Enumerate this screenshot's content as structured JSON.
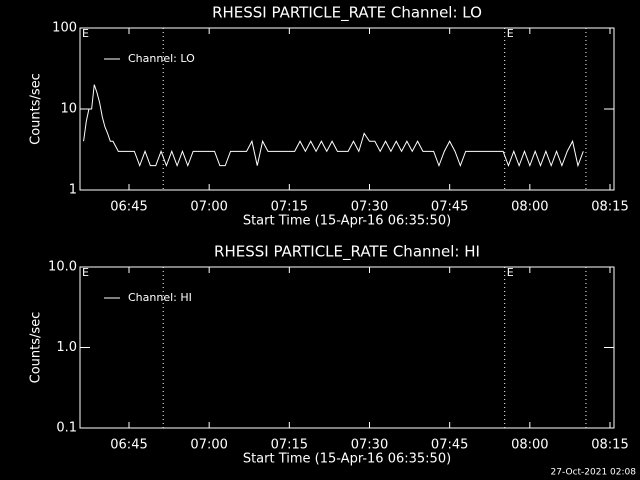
{
  "chart_data": [
    {
      "type": "line",
      "title": "RHESSI PARTICLE_RATE Channel: LO",
      "xlabel": "Start Time (15-Apr-16 06:35:50)",
      "ylabel": "Counts/sec",
      "log_y": true,
      "legend": "upper left",
      "xlim": [
        395.83,
        495.75
      ],
      "xticks": [
        {
          "value": 405,
          "label": "06:45"
        },
        {
          "value": 420,
          "label": "07:00"
        },
        {
          "value": 435,
          "label": "07:15"
        },
        {
          "value": 450,
          "label": "07:30"
        },
        {
          "value": 465,
          "label": "07:45"
        },
        {
          "value": 480,
          "label": "08:00"
        },
        {
          "value": 495,
          "label": "08:15"
        }
      ],
      "ylim": [
        1,
        100
      ],
      "yticks": [
        1,
        10,
        100
      ],
      "vlines": [
        411.4,
        475.3,
        490.5
      ],
      "annotations": [
        {
          "text": "E",
          "x": 395.83
        },
        {
          "text": "E",
          "x": 475.3
        }
      ],
      "x": [
        396.5,
        397,
        397.5,
        398,
        398.5,
        399,
        399.5,
        400,
        400.5,
        401,
        401.5,
        402,
        403,
        404,
        405,
        406,
        407,
        408,
        409,
        410,
        411,
        412,
        413,
        414,
        415,
        416,
        417,
        418,
        419,
        420,
        421,
        422,
        423,
        424,
        425,
        426,
        427,
        428,
        429,
        430,
        431,
        432,
        433,
        434,
        435,
        436,
        437,
        438,
        439,
        440,
        441,
        442,
        443,
        444,
        445,
        446,
        447,
        448,
        449,
        450,
        451,
        452,
        453,
        454,
        455,
        456,
        457,
        458,
        459,
        460,
        461,
        462,
        463,
        464,
        465,
        466,
        467,
        468,
        469,
        470,
        471,
        472,
        473,
        474,
        475,
        476,
        477,
        478,
        479,
        480,
        481,
        482,
        483,
        484,
        485,
        486,
        487,
        488,
        489,
        490
      ],
      "series": [
        {
          "name": "Channel: LO",
          "color": "#ffffff",
          "values": [
            4,
            7,
            10,
            10,
            20,
            16,
            12,
            8,
            6,
            5,
            4,
            4,
            3,
            3,
            3,
            3,
            2,
            3,
            2,
            2,
            3,
            2,
            3,
            2,
            3,
            2,
            3,
            3,
            3,
            3,
            3,
            2,
            2,
            3,
            3,
            3,
            3,
            4,
            2,
            4,
            3,
            3,
            3,
            3,
            3,
            3,
            4,
            3,
            4,
            3,
            4,
            3,
            4,
            3,
            3,
            3,
            4,
            3,
            5,
            4,
            4,
            3,
            4,
            3,
            4,
            3,
            4,
            3,
            4,
            3,
            3,
            3,
            2,
            3,
            4,
            3,
            2,
            3,
            3,
            3,
            3,
            3,
            3,
            3,
            3,
            2,
            3,
            2,
            3,
            2,
            3,
            2,
            3,
            2,
            3,
            2,
            3,
            4,
            2,
            3
          ]
        }
      ]
    },
    {
      "type": "line",
      "title": "RHESSI PARTICLE_RATE Channel: HI",
      "xlabel": "Start Time (15-Apr-16 06:35:50)",
      "ylabel": "Counts/sec",
      "log_y": true,
      "legend": "upper left",
      "xlim": [
        395.83,
        495.75
      ],
      "xticks": [
        {
          "value": 405,
          "label": "06:45"
        },
        {
          "value": 420,
          "label": "07:00"
        },
        {
          "value": 435,
          "label": "07:15"
        },
        {
          "value": 450,
          "label": "07:30"
        },
        {
          "value": 465,
          "label": "07:45"
        },
        {
          "value": 480,
          "label": "08:00"
        },
        {
          "value": 495,
          "label": "08:15"
        }
      ],
      "ylim": [
        0.1,
        10
      ],
      "yticks": [
        0.1,
        {
          "value": 1,
          "label": "1.0"
        },
        {
          "value": 10,
          "label": "10.0"
        }
      ],
      "vlines": [
        411.4,
        475.3,
        490.5
      ],
      "annotations": [
        {
          "text": "E",
          "x": 395.83
        },
        {
          "text": "E",
          "x": 475.3
        }
      ],
      "x": [],
      "series": [
        {
          "name": "Channel: HI",
          "color": "#ffffff",
          "values": []
        }
      ]
    }
  ],
  "footer": "27-Oct-2021 02:08"
}
